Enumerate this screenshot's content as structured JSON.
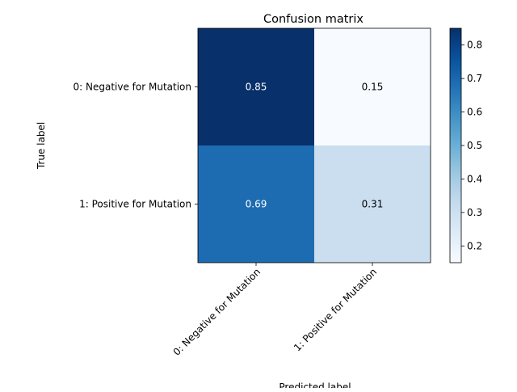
{
  "chart_data": {
    "type": "heatmap",
    "title": "Confusion matrix",
    "xlabel": "Predicted label",
    "ylabel": "True label",
    "x_categories": [
      "0: Negative for Mutation",
      "1: Positive for Mutation"
    ],
    "y_categories": [
      "0: Negative for Mutation",
      "1: Positive for Mutation"
    ],
    "values": [
      [
        0.85,
        0.15
      ],
      [
        0.69,
        0.31
      ]
    ],
    "cell_labels": [
      [
        "0.85",
        "0.15"
      ],
      [
        "0.69",
        "0.31"
      ]
    ],
    "colormap": "Blues",
    "colorbar": {
      "range": [
        0.15,
        0.85
      ],
      "ticks": [
        0.2,
        0.3,
        0.4,
        0.5,
        0.6,
        0.7,
        0.8
      ],
      "tick_labels": [
        "0.2",
        "0.3",
        "0.4",
        "0.5",
        "0.6",
        "0.7",
        "0.8"
      ]
    },
    "text_colors": {
      "light": "#ffffff",
      "dark": "#000000"
    }
  }
}
